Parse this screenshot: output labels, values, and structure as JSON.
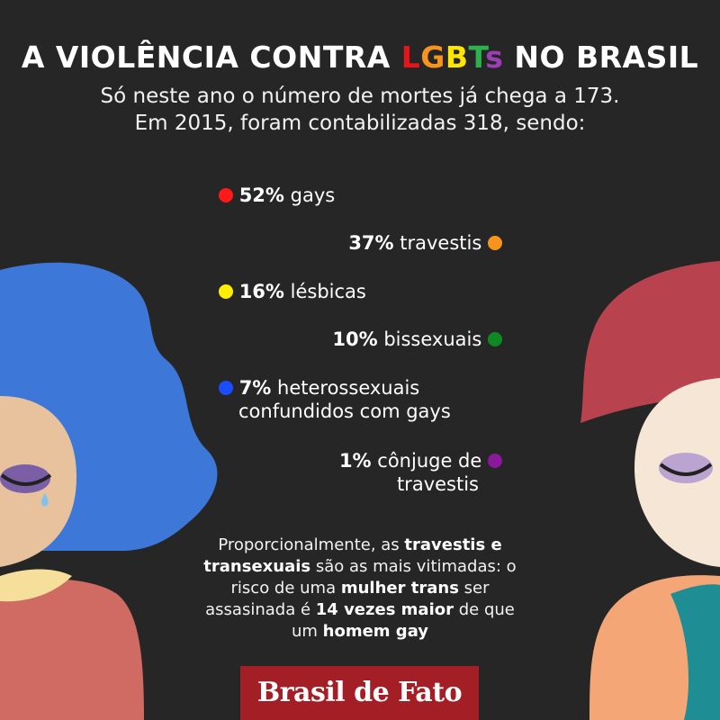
{
  "title": {
    "before": "A VIOLÊNCIA CONTRA ",
    "letters": [
      "L",
      "G",
      "B",
      "T",
      "s"
    ],
    "letter_colors": [
      "#e8141a",
      "#f7941d",
      "#ffe500",
      "#2bb24c",
      "#2e6fd8"
    ],
    "s_color": "#9b3fb5",
    "after": " NO BRASIL"
  },
  "subtitle": {
    "line1": "Só neste ano o número de mortes já chega a 173.",
    "line2": "Em 2015, foram contabilizadas 318, sendo:"
  },
  "stats": [
    {
      "pct": "52%",
      "label": "gays",
      "color": "#ff1a1a"
    },
    {
      "pct": "37%",
      "label": "travestis",
      "color": "#f7941d"
    },
    {
      "pct": "16%",
      "label": "lésbicas",
      "color": "#ffee00"
    },
    {
      "pct": "10%",
      "label": "bissexuais",
      "color": "#0f8a23"
    },
    {
      "pct": "7%",
      "label": "heterossexuais",
      "label2": "confundidos com gays",
      "color": "#1a4dff"
    },
    {
      "pct": "1%",
      "label": "cônjuge de",
      "label2": "travestis",
      "color": "#8a1a9b"
    }
  ],
  "note": {
    "p1": "Proporcionalmente, as ",
    "b1": "travestis e transexuais",
    "p2": " são as mais vitimadas: o risco de uma ",
    "b2": "mulher trans",
    "p3": " ser assasinada é ",
    "b3": "14 vezes maior",
    "p4": " de que um ",
    "b4": "homem gay"
  },
  "logo": "Brasil de Fato"
}
